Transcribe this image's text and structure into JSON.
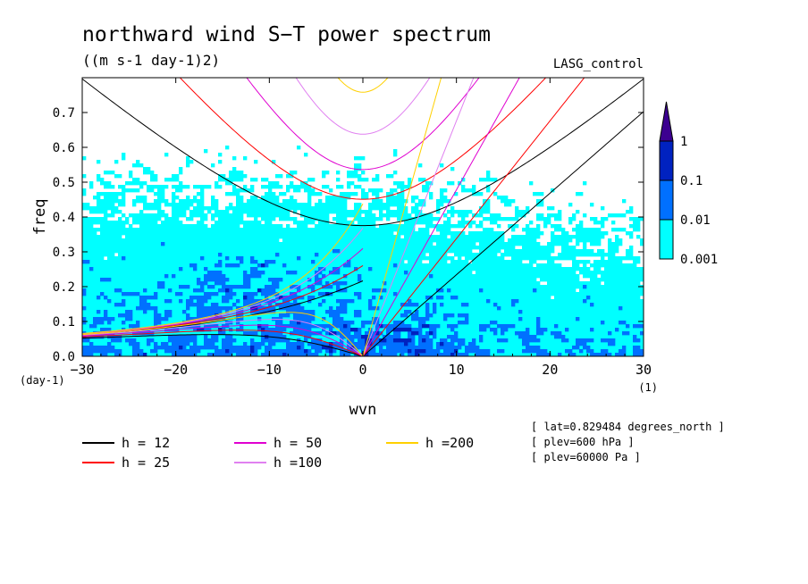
{
  "title": "northward wind S−T power spectrum",
  "units": "((m s-1 day-1)2)",
  "run_label": "LASG_control",
  "chart_data": {
    "type": "heatmap",
    "title": "northward wind S−T power spectrum",
    "subtitle": "((m s-1 day-1)2)",
    "xlabel": "wvn",
    "ylabel": "freq",
    "x_unit": "(1)",
    "y_unit": "(day-1)",
    "xlim": [
      -30,
      30
    ],
    "ylim": [
      0,
      0.8
    ],
    "x_ticks": [
      -30,
      -20,
      -10,
      0,
      10,
      20,
      30
    ],
    "x_tick_labels": [
      "−30",
      "−20",
      "−10",
      "0",
      "10",
      "20",
      "30"
    ],
    "y_ticks": [
      0,
      0.1,
      0.2,
      0.3,
      0.4,
      0.5,
      0.6,
      0.7
    ],
    "y_tick_labels": [
      "0.0",
      "0.1",
      "0.2",
      "0.3",
      "0.4",
      "0.5",
      "0.6",
      "0.7"
    ],
    "levels": [
      0.001,
      0.01,
      0.1,
      1
    ],
    "level_labels": [
      "0.001",
      "0.01",
      "0.1",
      "1"
    ],
    "level_colors": [
      "#00ffff",
      "#0070ff",
      "#0022c0",
      "#3c0090"
    ],
    "dispersion_curves": [
      {
        "name": "h = 12",
        "h": 12,
        "color": "#000000"
      },
      {
        "name": "h = 25",
        "h": 25,
        "color": "#ff0000"
      },
      {
        "name": "h = 50",
        "h": 50,
        "color": "#e000d0"
      },
      {
        "name": "h =100",
        "h": 100,
        "color": "#e080f0"
      },
      {
        "name": "h =200",
        "h": 200,
        "color": "#ffd000"
      }
    ],
    "annotations": [
      "[ lat=0.829484 degrees_north ]",
      "[ plev=600 hPa ]",
      "[ plev=60000 Pa ]"
    ]
  }
}
